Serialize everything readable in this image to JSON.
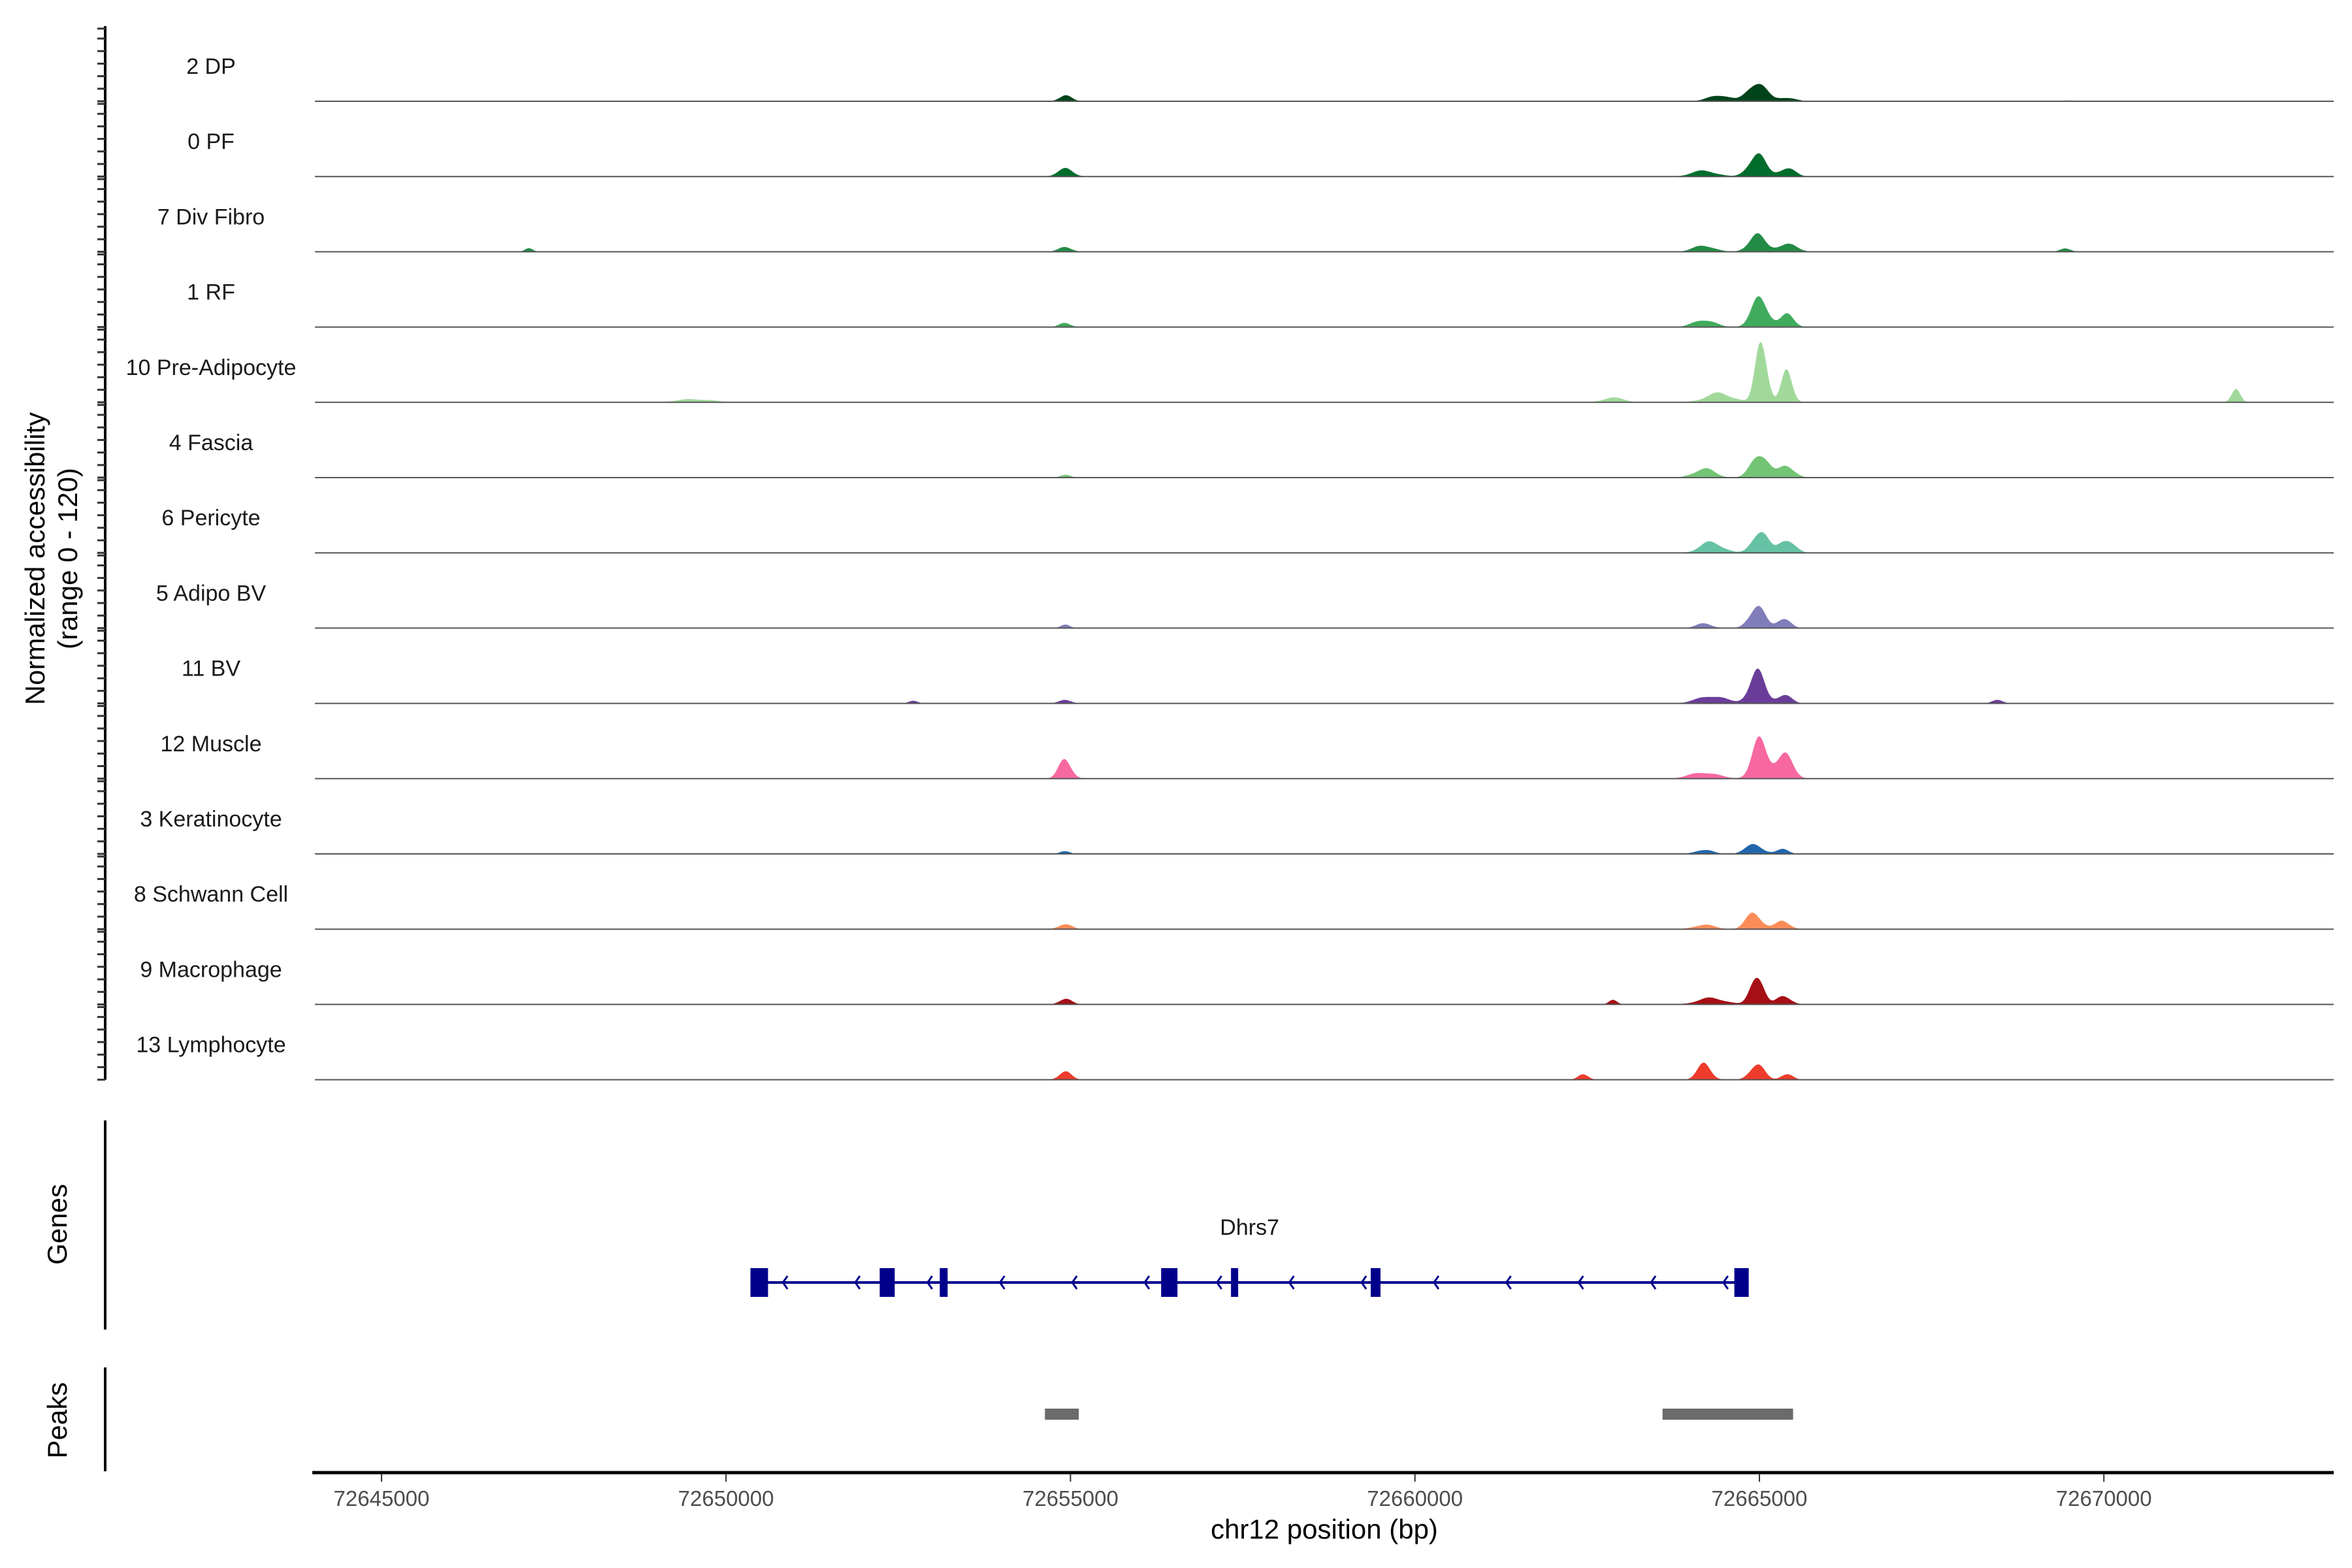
{
  "chart_data": {
    "type": "area",
    "title": "",
    "xlabel": "chr12 position (bp)",
    "ylabel": "Normalized accessibility",
    "ylabel_sub": "(range 0 - 120)",
    "ylim": [
      0,
      120
    ],
    "xlim": [
      72644033,
      72673336
    ],
    "x_ticks": [
      72645000,
      72650000,
      72655000,
      72660000,
      72665000,
      72670000
    ],
    "x_tick_labels": [
      "72645000",
      "72650000",
      "72655000",
      "72660000",
      "72665000",
      "72670000"
    ],
    "tracks": [
      {
        "name": "2 DP",
        "color": "#00441b",
        "peaks": [
          [
            72664963,
            31,
            130
          ],
          [
            72664416,
            10,
            150
          ],
          [
            72665400,
            6,
            120
          ],
          [
            72654924,
            9,
            90
          ],
          [
            72647139,
            1,
            300
          ],
          [
            72669447,
            1,
            400
          ]
        ]
      },
      {
        "name": "0 PF",
        "color": "#006d2c",
        "peaks": [
          [
            72664963,
            36,
            120
          ],
          [
            72665400,
            14,
            110
          ],
          [
            72664197,
            9,
            180
          ],
          [
            72654924,
            12,
            110
          ]
        ]
      },
      {
        "name": "7 Div Fibro",
        "color": "#238b45",
        "peaks": [
          [
            72664963,
            26,
            120
          ],
          [
            72665400,
            12,
            140
          ],
          [
            72664197,
            10,
            150
          ],
          [
            72654924,
            7,
            100
          ],
          [
            72647139,
            5,
            60
          ],
          [
            72669447,
            5,
            80
          ]
        ]
      },
      {
        "name": "1 RF",
        "color": "#41ab5d",
        "peaks": [
          [
            72665007,
            45,
            120
          ],
          [
            72665400,
            19,
            100
          ],
          [
            72664197,
            12,
            150
          ],
          [
            72654924,
            7,
            80
          ]
        ]
      },
      {
        "name": "10 Pre-Adipocyte",
        "color": "#a1d99b",
        "peaks": [
          [
            72665029,
            106,
            80
          ],
          [
            72665400,
            48,
            80
          ],
          [
            72664416,
            14,
            200
          ],
          [
            72662880,
            7,
            160
          ],
          [
            72671914,
            24,
            60
          ],
          [
            72649545,
            5,
            250
          ]
        ]
      },
      {
        "name": "4 Fascia",
        "color": "#74c476",
        "peaks": [
          [
            72665007,
            40,
            120
          ],
          [
            72665400,
            19,
            110
          ],
          [
            72664197,
            14,
            150
          ],
          [
            72654924,
            5,
            70
          ]
        ]
      },
      {
        "name": "6 Pericyte",
        "color": "#66c2a4",
        "peaks": [
          [
            72665007,
            36,
            110
          ],
          [
            72665400,
            22,
            110
          ],
          [
            72664306,
            17,
            160
          ]
        ]
      },
      {
        "name": "5 Adipo BV",
        "color": "#807dba",
        "peaks": [
          [
            72664963,
            36,
            110
          ],
          [
            72665357,
            17,
            90
          ],
          [
            72664197,
            7,
            120
          ],
          [
            72654924,
            5,
            70
          ]
        ]
      },
      {
        "name": "11 BV",
        "color": "#6a3d9a",
        "peaks": [
          [
            72664963,
            50,
            110
          ],
          [
            72665357,
            14,
            100
          ],
          [
            72664306,
            12,
            200
          ],
          [
            72654924,
            5,
            90
          ],
          [
            72652717,
            5,
            60
          ],
          [
            72668459,
            5,
            80
          ]
        ]
      },
      {
        "name": "12 Muscle",
        "color": "#f768a1",
        "peaks": [
          [
            72665007,
            60,
            110
          ],
          [
            72665357,
            38,
            120
          ],
          [
            72654924,
            31,
            90
          ],
          [
            72664197,
            10,
            200
          ]
        ]
      },
      {
        "name": "3 Keratinocyte",
        "color": "#2166ac",
        "peaks": [
          [
            72664919,
            14,
            130
          ],
          [
            72665335,
            7,
            90
          ],
          [
            72664197,
            7,
            120
          ],
          [
            72654924,
            5,
            70
          ]
        ]
      },
      {
        "name": "8 Schwann Cell",
        "color": "#fc8d59",
        "peaks": [
          [
            72664919,
            26,
            110
          ],
          [
            72665335,
            12,
            110
          ],
          [
            72654924,
            9,
            90
          ],
          [
            72664197,
            7,
            150
          ]
        ]
      },
      {
        "name": "9 Macrophage",
        "color": "#a50f15",
        "peaks": [
          [
            72664963,
            50,
            90
          ],
          [
            72665357,
            14,
            100
          ],
          [
            72664306,
            10,
            200
          ],
          [
            72654924,
            9,
            90
          ],
          [
            72662880,
            7,
            60
          ]
        ]
      },
      {
        "name": "13 Lymphocyte",
        "color": "#ef3b2c",
        "peaks": [
          [
            72664963,
            26,
            100
          ],
          [
            72664197,
            24,
            100
          ],
          [
            72665400,
            10,
            80
          ],
          [
            72654924,
            12,
            90
          ],
          [
            72662443,
            10,
            70
          ]
        ]
      }
    ],
    "genes": {
      "label": "Genes",
      "items": [
        {
          "name": "Dhrs7",
          "strand": "-",
          "color": "#00008b",
          "start": 72650355,
          "end": 72664845,
          "exons": [
            [
              72650355,
              72650610
            ],
            [
              72652231,
              72652449
            ],
            [
              72653103,
              72653217
            ],
            [
              72656316,
              72656553
            ],
            [
              72657330,
              72657434
            ],
            [
              72659358,
              72659500
            ],
            [
              72664636,
              72664845
            ]
          ]
        }
      ]
    },
    "peaks_track": {
      "label": "Peaks",
      "color": "#6b6b6b",
      "regions": [
        [
          72654629,
          72655121
        ],
        [
          72663594,
          72665489
        ]
      ]
    }
  }
}
